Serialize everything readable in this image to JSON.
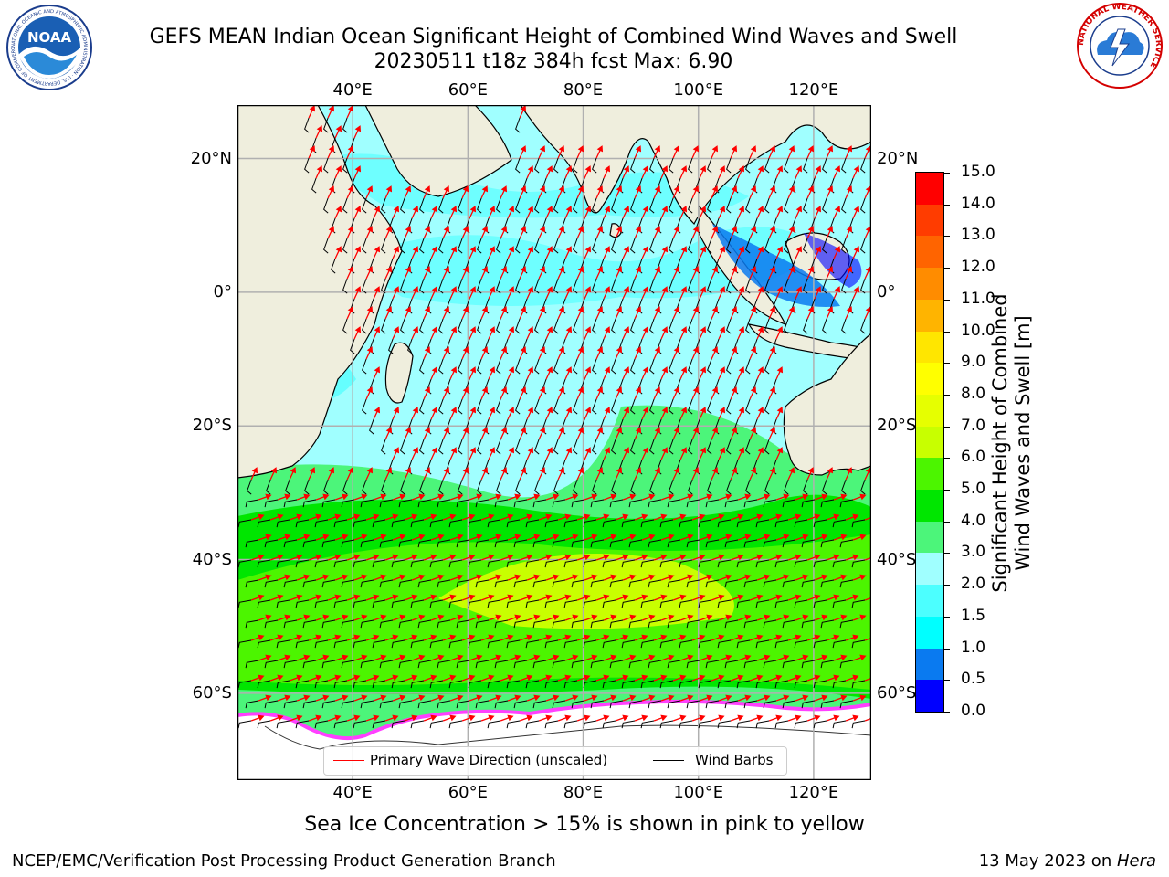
{
  "header": {
    "title_line1": "GEFS MEAN Indian Ocean Significant Height of Combined Wind Waves and Swell",
    "title_line2": "20230511 t18z 384h fcst   Max: 6.90"
  },
  "logos": {
    "noaa_text": "NOAA",
    "noaa_ring_text": "NATIONAL OCEANIC AND ATMOSPHERIC ADMINISTRATION · U.S. DEPARTMENT OF COMMERCE",
    "nws_ring_text": "NATIONAL WEATHER SERVICE"
  },
  "map": {
    "x_ticks": [
      {
        "lon": 40,
        "label": "40°E"
      },
      {
        "lon": 60,
        "label": "60°E"
      },
      {
        "lon": 80,
        "label": "80°E"
      },
      {
        "lon": 100,
        "label": "100°E"
      },
      {
        "lon": 120,
        "label": "120°E"
      }
    ],
    "y_ticks": [
      {
        "lat": 20,
        "label": "20°N"
      },
      {
        "lat": 0,
        "label": "0°"
      },
      {
        "lat": -20,
        "label": "20°S"
      },
      {
        "lat": -40,
        "label": "40°S"
      },
      {
        "lat": -60,
        "label": "60°S"
      }
    ],
    "lon_range": [
      20,
      130
    ],
    "lat_range": [
      -73,
      28
    ],
    "grid": true,
    "colors": {
      "land": "#efeedd",
      "ice": "#ffffff",
      "wave_arrow": "#ff0000",
      "wind_barb": "#000000",
      "grid": "#b0b0b0"
    }
  },
  "legend": {
    "wave_label": "Primary Wave Direction (unscaled)",
    "wind_label": "Wind Barbs"
  },
  "colorbar": {
    "title_line1": "Significant Height of Combined",
    "title_line2": "Wind Waves and Swell [m]",
    "levels": [
      {
        "label": "0.0",
        "color": "#0000ff"
      },
      {
        "label": "0.5",
        "color": "#0a7af0"
      },
      {
        "label": "1.0",
        "color": "#00ffff"
      },
      {
        "label": "1.5",
        "color": "#4cffff"
      },
      {
        "label": "2.0",
        "color": "#a0ffff"
      },
      {
        "label": "3.0",
        "color": "#4cf57a"
      },
      {
        "label": "4.0",
        "color": "#00e600"
      },
      {
        "label": "5.0",
        "color": "#4cf500"
      },
      {
        "label": "6.0",
        "color": "#c8ff00"
      },
      {
        "label": "7.0",
        "color": "#e6ff00"
      },
      {
        "label": "8.0",
        "color": "#ffff00"
      },
      {
        "label": "9.0",
        "color": "#ffe600"
      },
      {
        "label": "10.0",
        "color": "#ffb400"
      },
      {
        "label": "11.0",
        "color": "#ff8c00"
      },
      {
        "label": "12.0",
        "color": "#ff6400"
      },
      {
        "label": "13.0",
        "color": "#ff3c00"
      },
      {
        "label": "14.0",
        "color": "#ff0000"
      },
      {
        "label": "15.0",
        "color": ""
      }
    ]
  },
  "footer": {
    "ice_note": "Sea Ice Concentration > 15% is shown in pink to yellow",
    "left": "NCEP/EMC/Verification Post Processing Product Generation Branch",
    "right_prefix": "13 May 2023 on ",
    "right_host": "Hera"
  }
}
